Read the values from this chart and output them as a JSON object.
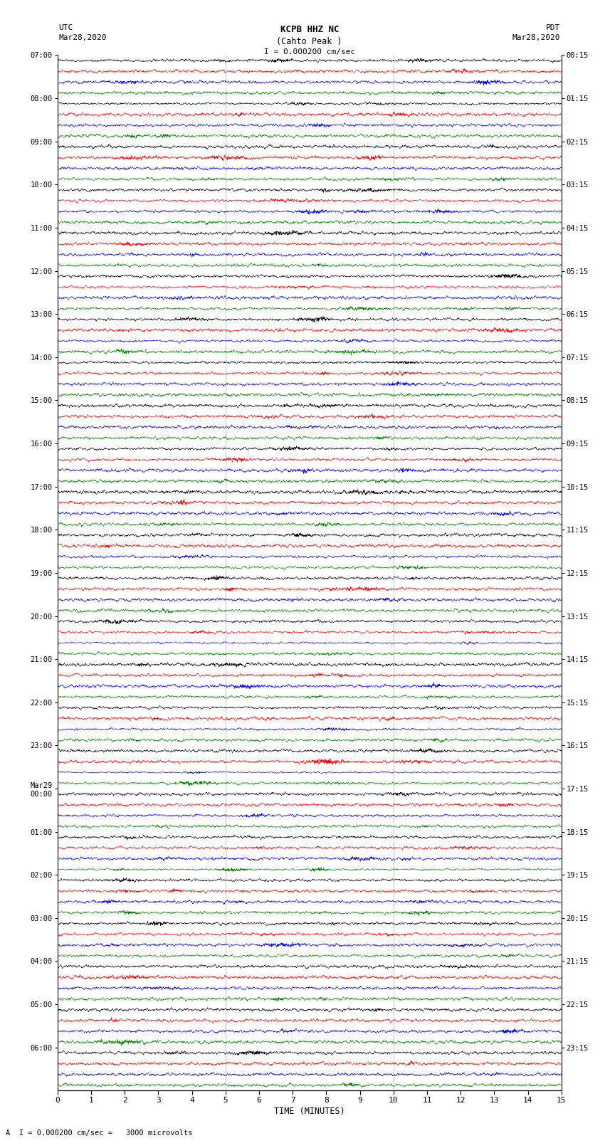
{
  "title_line1": "KCPB HHZ NC",
  "title_line2": "(Cahto Peak )",
  "scale_bar": "I = 0.000200 cm/sec",
  "label_left_top": "UTC",
  "label_left_date": "Mar28,2020",
  "label_right_top": "PDT",
  "label_right_date": "Mar28,2020",
  "xlabel": "TIME (MINUTES)",
  "footer": "A  I = 0.000200 cm/sec =   3000 microvolts",
  "utc_labels": [
    "07:00",
    "08:00",
    "09:00",
    "10:00",
    "11:00",
    "12:00",
    "13:00",
    "14:00",
    "15:00",
    "16:00",
    "17:00",
    "18:00",
    "19:00",
    "20:00",
    "21:00",
    "22:00",
    "23:00",
    "Mar29\n00:00",
    "01:00",
    "02:00",
    "03:00",
    "04:00",
    "05:00",
    "06:00"
  ],
  "pdt_labels": [
    "00:15",
    "01:15",
    "02:15",
    "03:15",
    "04:15",
    "05:15",
    "06:15",
    "07:15",
    "08:15",
    "09:15",
    "10:15",
    "11:15",
    "12:15",
    "13:15",
    "14:15",
    "15:15",
    "16:15",
    "17:15",
    "18:15",
    "19:15",
    "20:15",
    "21:15",
    "22:15",
    "23:15"
  ],
  "colors": [
    "black",
    "red",
    "blue",
    "green"
  ],
  "n_groups": 24,
  "traces_per_group": 4,
  "time_minutes": 15,
  "fig_width": 8.5,
  "fig_height": 16.13,
  "background_color": "white",
  "seed": 42,
  "vline_positions": [
    5,
    10
  ],
  "n_pts": 3000
}
